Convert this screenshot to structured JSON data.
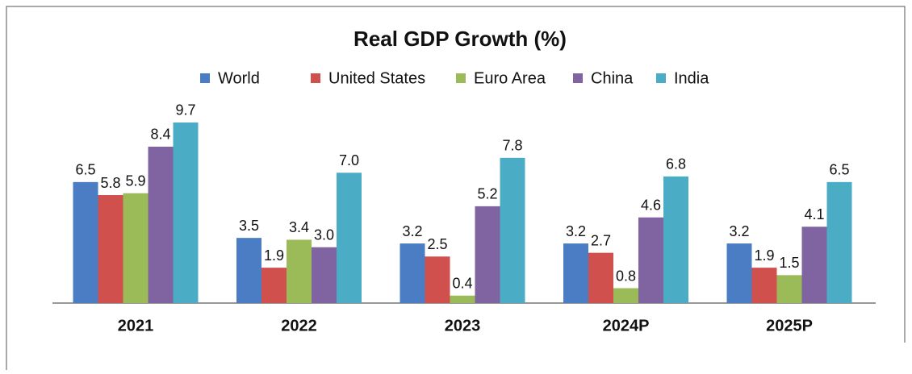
{
  "chart_data": {
    "type": "bar",
    "title": "Real GDP Growth (%)",
    "categories": [
      "2021",
      "2022",
      "2023",
      "2024P",
      "2025P"
    ],
    "series": [
      {
        "name": "World",
        "color": "#4a7dc4",
        "values": [
          6.5,
          3.5,
          3.2,
          3.2,
          3.2
        ],
        "value_labels": [
          "6.5",
          "3.5",
          "3.2",
          "3.2",
          "3.2"
        ]
      },
      {
        "name": "United States",
        "color": "#d0504d",
        "values": [
          5.8,
          1.9,
          2.5,
          2.7,
          1.9
        ],
        "value_labels": [
          "5.8",
          "1.9",
          "2.5",
          "2.7",
          "1.9"
        ]
      },
      {
        "name": "Euro Area",
        "color": "#9bbb59",
        "values": [
          5.9,
          3.4,
          0.4,
          0.8,
          1.5
        ],
        "value_labels": [
          "5.9",
          "3.4",
          "0.4",
          "0.8",
          "1.5"
        ]
      },
      {
        "name": "China",
        "color": "#8064a2",
        "values": [
          8.4,
          3.0,
          5.2,
          4.6,
          4.1
        ],
        "value_labels": [
          "8.4",
          "3.0",
          "5.2",
          "4.6",
          "4.1"
        ]
      },
      {
        "name": "India",
        "color": "#4bacc6",
        "values": [
          9.7,
          7.0,
          7.8,
          6.8,
          6.5
        ],
        "value_labels": [
          "9.7",
          "7.0",
          "7.8",
          "6.8",
          "6.5"
        ]
      }
    ]
  }
}
